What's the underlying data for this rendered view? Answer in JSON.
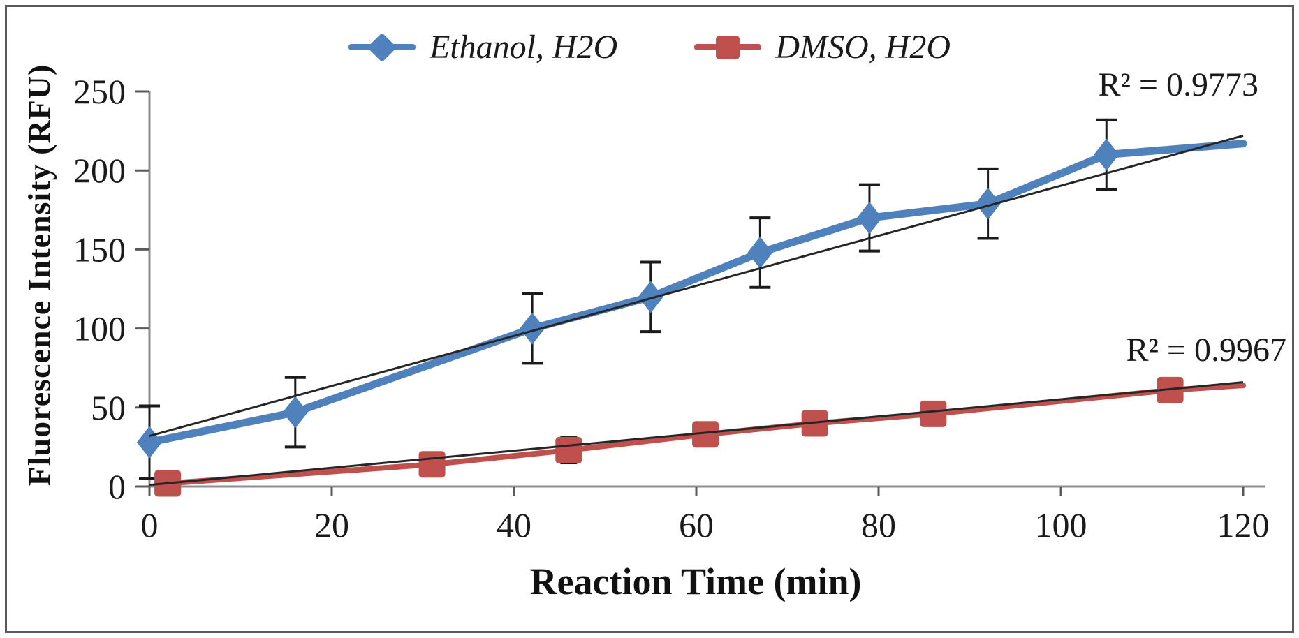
{
  "figure": {
    "background": "#ffffff",
    "border_color": "#595959"
  },
  "legend": {
    "items": [
      {
        "label": "Ethanol, H2O",
        "color": "#4F81BD",
        "marker": "diamond"
      },
      {
        "label": "DMSO, H2O",
        "color": "#C0504D",
        "marker": "square"
      }
    ]
  },
  "chart_data": {
    "type": "line",
    "xlabel": "Reaction Time (min)",
    "ylabel": "Fluorescence Intensity (RFU)",
    "xlim": [
      0,
      120
    ],
    "ylim": [
      0,
      250
    ],
    "xticks": [
      0,
      20,
      40,
      60,
      80,
      100,
      120
    ],
    "yticks": [
      0,
      50,
      100,
      150,
      200,
      250
    ],
    "grid": false,
    "legend_position": "top-center",
    "series": [
      {
        "name": "Ethanol, H2O",
        "color": "#4F81BD",
        "marker": "diamond",
        "x": [
          0,
          16,
          42,
          55,
          67,
          79,
          92,
          105,
          120
        ],
        "y": [
          28,
          47,
          100,
          120,
          148,
          170,
          179,
          210,
          217
        ],
        "error": [
          23,
          22,
          22,
          22,
          22,
          21,
          22,
          22,
          0
        ],
        "markers": [
          1,
          1,
          1,
          1,
          1,
          1,
          1,
          1,
          0
        ],
        "trendline": {
          "from": [
            0,
            32
          ],
          "to": [
            120,
            222
          ],
          "r2": 0.9773,
          "label": "R² = 0.9773"
        }
      },
      {
        "name": "DMSO, H2O",
        "color": "#C0504D",
        "marker": "square",
        "x": [
          2,
          31,
          46,
          61,
          73,
          86,
          112,
          120
        ],
        "y": [
          2,
          14,
          23,
          33,
          40,
          46,
          61,
          64
        ],
        "error": [
          4,
          7,
          8,
          5,
          5,
          5,
          6,
          0
        ],
        "markers": [
          1,
          1,
          1,
          1,
          1,
          1,
          1,
          0
        ],
        "trendline": {
          "from": [
            0,
            1
          ],
          "to": [
            120,
            66
          ],
          "r2": 0.9967,
          "label": "R² = 0.9967"
        }
      }
    ]
  }
}
